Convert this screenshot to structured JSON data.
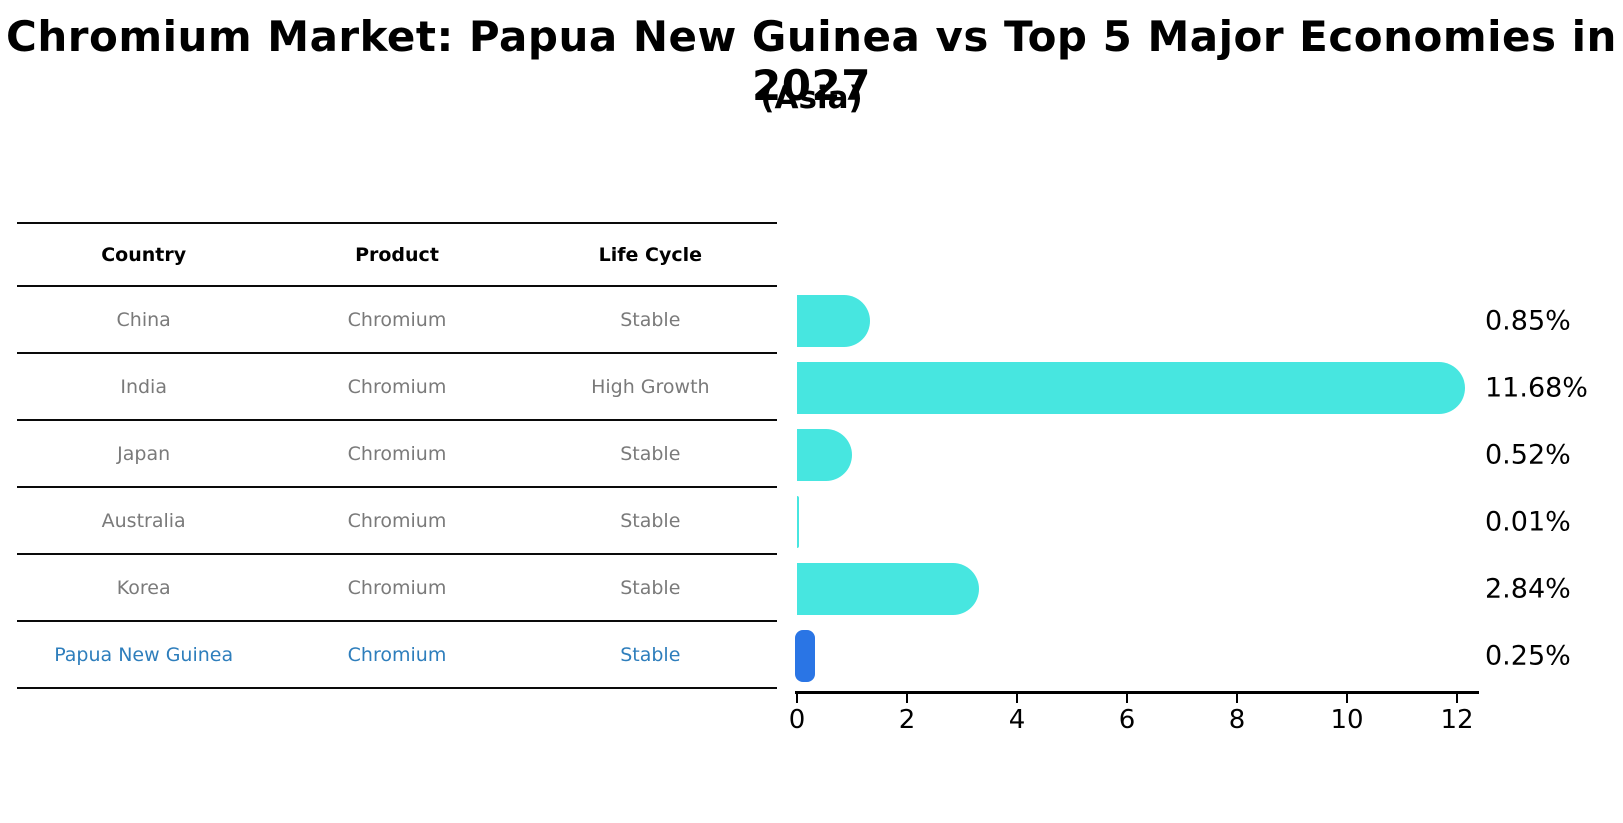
{
  "title": "Chromium Market: Papua New Guinea vs Top 5 Major Economies in 2027",
  "subtitle": "(Asia)",
  "table": {
    "headers": [
      "Country",
      "Product",
      "Life Cycle"
    ],
    "rows": [
      {
        "country": "China",
        "product": "Chromium",
        "life_cycle": "Stable"
      },
      {
        "country": "India",
        "product": "Chromium",
        "life_cycle": "High Growth"
      },
      {
        "country": "Japan",
        "product": "Chromium",
        "life_cycle": "Stable"
      },
      {
        "country": "Australia",
        "product": "Chromium",
        "life_cycle": "Stable"
      },
      {
        "country": "Korea",
        "product": "Chromium",
        "life_cycle": "Stable"
      },
      {
        "country": "Papua New Guinea",
        "product": "Chromium",
        "life_cycle": "Stable"
      }
    ]
  },
  "chart_data": {
    "type": "bar",
    "orientation": "horizontal",
    "categories": [
      "China",
      "India",
      "Japan",
      "Australia",
      "Korea",
      "Papua New Guinea"
    ],
    "values": [
      0.85,
      11.68,
      0.52,
      0.01,
      2.84,
      0.25
    ],
    "value_labels": [
      "0.85%",
      "11.68%",
      "0.52%",
      "0.01%",
      "2.84%",
      "0.25%"
    ],
    "xticks": [
      "0",
      "2",
      "4",
      "6",
      "8",
      "10",
      "12"
    ],
    "xlim": [
      0,
      12
    ],
    "grid": false,
    "legend": "none",
    "bar_color": "#47E6E0",
    "highlight_color": "#2A75E5",
    "highlight_index": 5,
    "highlight_category": "Papua New Guinea"
  },
  "colors": {
    "bar": "#47E6E0",
    "highlight_bar": "#2A75E5",
    "highlight_text": "#2E7EBC",
    "table_text": "#7A7A7A",
    "axis_text": "#000000"
  }
}
